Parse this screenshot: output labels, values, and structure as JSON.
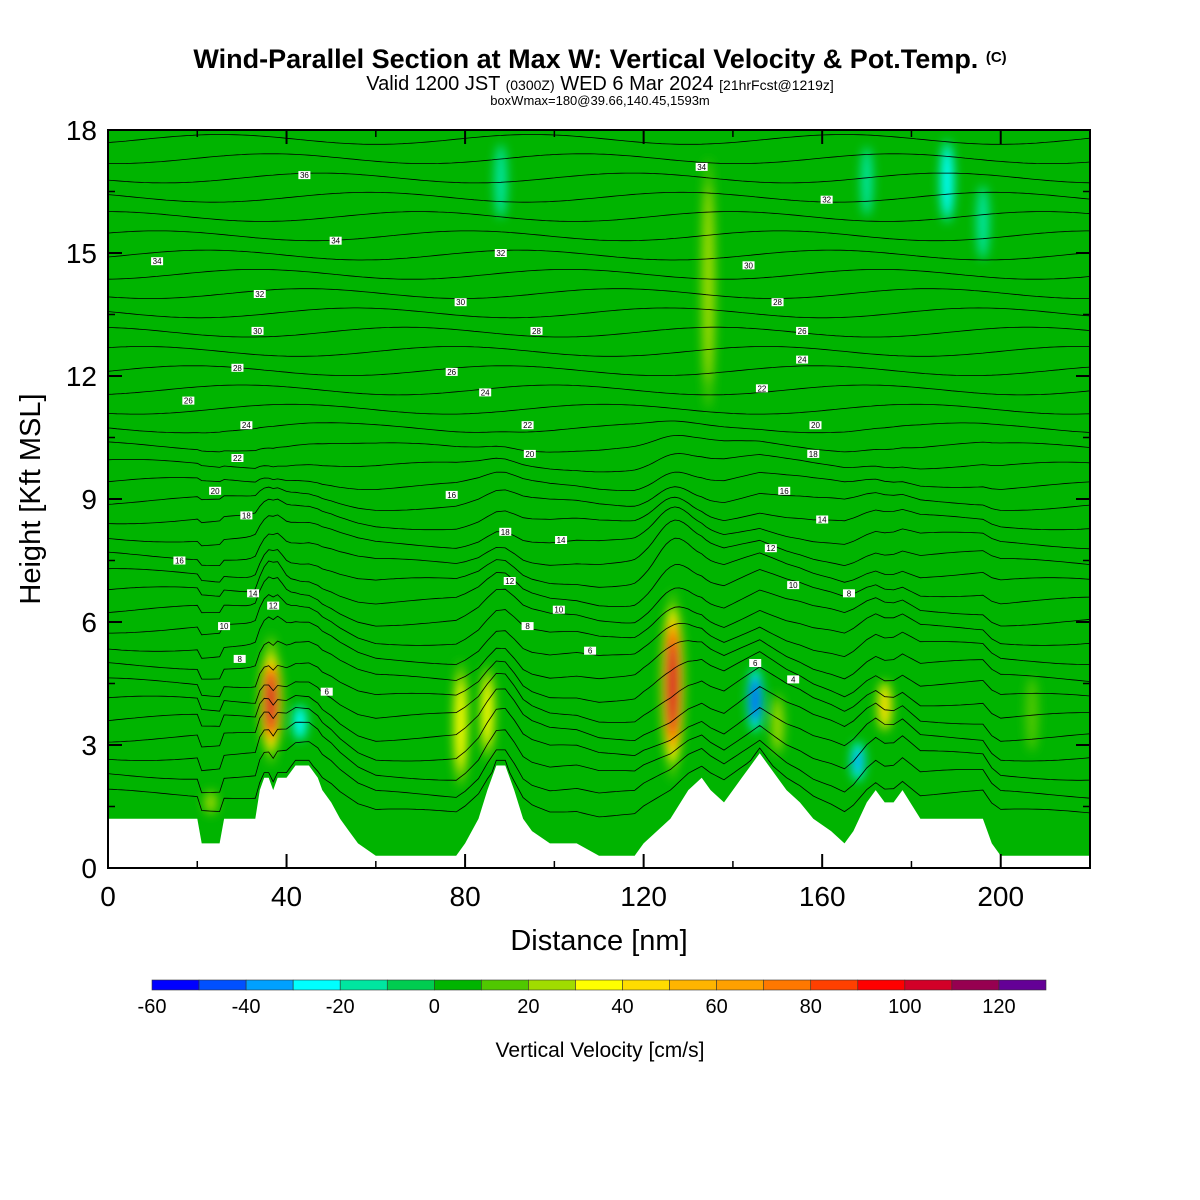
{
  "header": {
    "title_main": "Wind-Parallel Section at Max W: Vertical Velocity & Pot.Temp.",
    "title_copyright": "(C)",
    "valid_prefix": "Valid 1200 JST",
    "valid_z": "(0300Z)",
    "valid_date": "WED 6 Mar 2024",
    "valid_fcst": "[21hrFcst@1219z]",
    "box_info": "boxWmax=180@39.66,140.45,1593m"
  },
  "chart_data": {
    "type": "heatmap",
    "xlabel": "Distance [nm]",
    "ylabel": "Height [Kft MSL]",
    "xlim": [
      0,
      220
    ],
    "ylim": [
      0,
      18
    ],
    "xticks": [
      0,
      40,
      80,
      120,
      160,
      200
    ],
    "yticks": [
      0,
      3,
      6,
      9,
      12,
      15,
      18
    ],
    "colorbar": {
      "label": "Vertical Velocity [cm/s]",
      "ticks": [
        -60,
        -40,
        -20,
        0,
        20,
        40,
        60,
        80,
        100,
        120
      ],
      "bins": [
        {
          "from": -60,
          "to": -50,
          "color": "#0000ff"
        },
        {
          "from": -50,
          "to": -40,
          "color": "#0050ff"
        },
        {
          "from": -40,
          "to": -30,
          "color": "#00a0ff"
        },
        {
          "from": -30,
          "to": -20,
          "color": "#00ffff"
        },
        {
          "from": -20,
          "to": -10,
          "color": "#00e6a0"
        },
        {
          "from": -10,
          "to": 0,
          "color": "#00cc50"
        },
        {
          "from": 0,
          "to": 10,
          "color": "#00b400"
        },
        {
          "from": 10,
          "to": 20,
          "color": "#50c800"
        },
        {
          "from": 20,
          "to": 30,
          "color": "#a0dc00"
        },
        {
          "from": 30,
          "to": 40,
          "color": "#ffff00"
        },
        {
          "from": 40,
          "to": 50,
          "color": "#ffdc00"
        },
        {
          "from": 50,
          "to": 60,
          "color": "#ffb400"
        },
        {
          "from": 60,
          "to": 70,
          "color": "#ffa000"
        },
        {
          "from": 70,
          "to": 80,
          "color": "#ff7800"
        },
        {
          "from": 80,
          "to": 90,
          "color": "#ff4000"
        },
        {
          "from": 90,
          "to": 100,
          "color": "#ff0000"
        },
        {
          "from": 100,
          "to": 110,
          "color": "#d20028"
        },
        {
          "from": 110,
          "to": 120,
          "color": "#960050"
        },
        {
          "from": 120,
          "to": 130,
          "color": "#640096"
        }
      ]
    },
    "background_w": 5,
    "w_features": [
      {
        "x": 36.5,
        "y0": 2.7,
        "y1": 5.4,
        "w": 110
      },
      {
        "x": 36.5,
        "y0": 2.3,
        "y1": 5.9,
        "w": 55
      },
      {
        "x": 126.5,
        "y0": 2.3,
        "y1": 6.6,
        "w": 115
      },
      {
        "x": 126.5,
        "y0": 1.9,
        "y1": 7.0,
        "w": 65
      },
      {
        "x": 79,
        "y0": 1.7,
        "y1": 5.3,
        "w": 45
      },
      {
        "x": 85,
        "y0": 2.4,
        "y1": 5.2,
        "w": 42
      },
      {
        "x": 174,
        "y0": 3.2,
        "y1": 4.7,
        "w": 52
      },
      {
        "x": 145,
        "y0": 3.2,
        "y1": 5.0,
        "w": -55
      },
      {
        "x": 168,
        "y0": 2.0,
        "y1": 3.2,
        "w": -38
      },
      {
        "x": 43,
        "y0": 3.0,
        "y1": 4.1,
        "w": -35
      },
      {
        "x": 134.5,
        "y0": 10.5,
        "y1": 18.0,
        "w": 35
      },
      {
        "x": 150,
        "y0": 2.5,
        "y1": 4.5,
        "w": 30
      },
      {
        "x": 188,
        "y0": 15.5,
        "y1": 18.0,
        "w": -35
      },
      {
        "x": 196,
        "y0": 14.5,
        "y1": 17.0,
        "w": -25
      },
      {
        "x": 170,
        "y0": 15.5,
        "y1": 18.0,
        "w": -22
      },
      {
        "x": 88,
        "y0": 15.5,
        "y1": 18.0,
        "w": -25
      },
      {
        "x": 60,
        "y0": 3.0,
        "y1": 4.0,
        "w": -15
      },
      {
        "x": 23,
        "y0": 1.2,
        "y1": 2.0,
        "w": 30
      },
      {
        "x": 207,
        "y0": 2.5,
        "y1": 5.0,
        "w": 25
      }
    ],
    "terrain": [
      [
        0,
        1.2
      ],
      [
        20,
        1.2
      ],
      [
        21,
        0.6
      ],
      [
        25,
        0.6
      ],
      [
        26,
        1.2
      ],
      [
        33,
        1.2
      ],
      [
        34,
        1.9
      ],
      [
        35,
        2.2
      ],
      [
        36,
        2.2
      ],
      [
        37,
        1.9
      ],
      [
        38,
        2.2
      ],
      [
        40,
        2.2
      ],
      [
        42,
        2.5
      ],
      [
        45,
        2.5
      ],
      [
        47,
        2.2
      ],
      [
        48,
        1.9
      ],
      [
        50,
        1.6
      ],
      [
        52,
        1.2
      ],
      [
        54,
        0.9
      ],
      [
        56,
        0.6
      ],
      [
        60,
        0.3
      ],
      [
        78,
        0.3
      ],
      [
        80,
        0.6
      ],
      [
        83,
        1.2
      ],
      [
        85,
        1.9
      ],
      [
        87,
        2.5
      ],
      [
        89,
        2.5
      ],
      [
        91,
        1.9
      ],
      [
        93,
        1.2
      ],
      [
        95,
        0.9
      ],
      [
        99,
        0.6
      ],
      [
        105,
        0.6
      ],
      [
        110,
        0.3
      ],
      [
        118,
        0.3
      ],
      [
        120,
        0.6
      ],
      [
        126,
        1.2
      ],
      [
        130,
        1.9
      ],
      [
        133,
        2.2
      ],
      [
        135,
        1.9
      ],
      [
        138,
        1.6
      ],
      [
        140,
        1.9
      ],
      [
        142,
        2.2
      ],
      [
        144,
        2.5
      ],
      [
        146,
        2.8
      ],
      [
        148,
        2.5
      ],
      [
        150,
        2.2
      ],
      [
        152,
        1.9
      ],
      [
        155,
        1.6
      ],
      [
        158,
        1.2
      ],
      [
        162,
        0.9
      ],
      [
        165,
        0.6
      ],
      [
        167,
        0.9
      ],
      [
        170,
        1.6
      ],
      [
        172,
        1.9
      ],
      [
        174,
        1.6
      ],
      [
        176,
        1.6
      ],
      [
        178,
        1.9
      ],
      [
        182,
        1.2
      ],
      [
        196,
        1.2
      ],
      [
        198,
        0.6
      ],
      [
        200,
        0.3
      ],
      [
        220,
        0.3
      ]
    ],
    "theta_contours": [
      {
        "value": 4,
        "label_at": [
          [
            153.5,
            4.6
          ]
        ]
      },
      {
        "value": 6,
        "label_at": [
          [
            49,
            4.3
          ],
          [
            108,
            5.3
          ],
          [
            145,
            5.0
          ]
        ]
      },
      {
        "value": 8,
        "label_at": [
          [
            29.5,
            5.1
          ],
          [
            94,
            5.9
          ],
          [
            166,
            6.7
          ]
        ]
      },
      {
        "value": 10,
        "label_at": [
          [
            26,
            5.9
          ],
          [
            101,
            6.3
          ],
          [
            153.5,
            6.9
          ]
        ]
      },
      {
        "value": 12,
        "label_at": [
          [
            37,
            6.4
          ],
          [
            90,
            7.0
          ],
          [
            148.5,
            7.8
          ]
        ]
      },
      {
        "value": 14,
        "label_at": [
          [
            32.5,
            6.7
          ],
          [
            101.5,
            8.0
          ],
          [
            160,
            8.5
          ]
        ]
      },
      {
        "value": 16,
        "label_at": [
          [
            16,
            7.5
          ],
          [
            77,
            9.1
          ],
          [
            151.5,
            9.2
          ]
        ]
      },
      {
        "value": 18,
        "label_at": [
          [
            31,
            8.6
          ],
          [
            89,
            8.2
          ],
          [
            158,
            10.1
          ]
        ]
      },
      {
        "value": 20,
        "label_at": [
          [
            24,
            9.2
          ],
          [
            94.5,
            10.1
          ],
          [
            158.5,
            10.8
          ]
        ]
      },
      {
        "value": 22,
        "label_at": [
          [
            29,
            10.0
          ],
          [
            94,
            10.8
          ],
          [
            146.5,
            11.7
          ]
        ]
      },
      {
        "value": 24,
        "label_at": [
          [
            31,
            10.8
          ],
          [
            84.5,
            11.6
          ],
          [
            155.5,
            12.4
          ]
        ]
      },
      {
        "value": 26,
        "label_at": [
          [
            18,
            11.4
          ],
          [
            77,
            12.1
          ],
          [
            155.5,
            13.1
          ]
        ]
      },
      {
        "value": 28,
        "label_at": [
          [
            29,
            12.2
          ],
          [
            96,
            13.1
          ],
          [
            150,
            13.8
          ]
        ]
      },
      {
        "value": 30,
        "label_at": [
          [
            33.5,
            13.1
          ],
          [
            79,
            13.8
          ],
          [
            143.5,
            14.7
          ]
        ]
      },
      {
        "value": 32,
        "label_at": [
          [
            34,
            14.0
          ],
          [
            88,
            15.0
          ],
          [
            161,
            16.3
          ]
        ]
      },
      {
        "value": 34,
        "label_at": [
          [
            11,
            14.8
          ],
          [
            51,
            15.3
          ],
          [
            133,
            17.1
          ]
        ]
      },
      {
        "value": 36,
        "label_at": [
          [
            44,
            16.9
          ]
        ]
      }
    ]
  }
}
